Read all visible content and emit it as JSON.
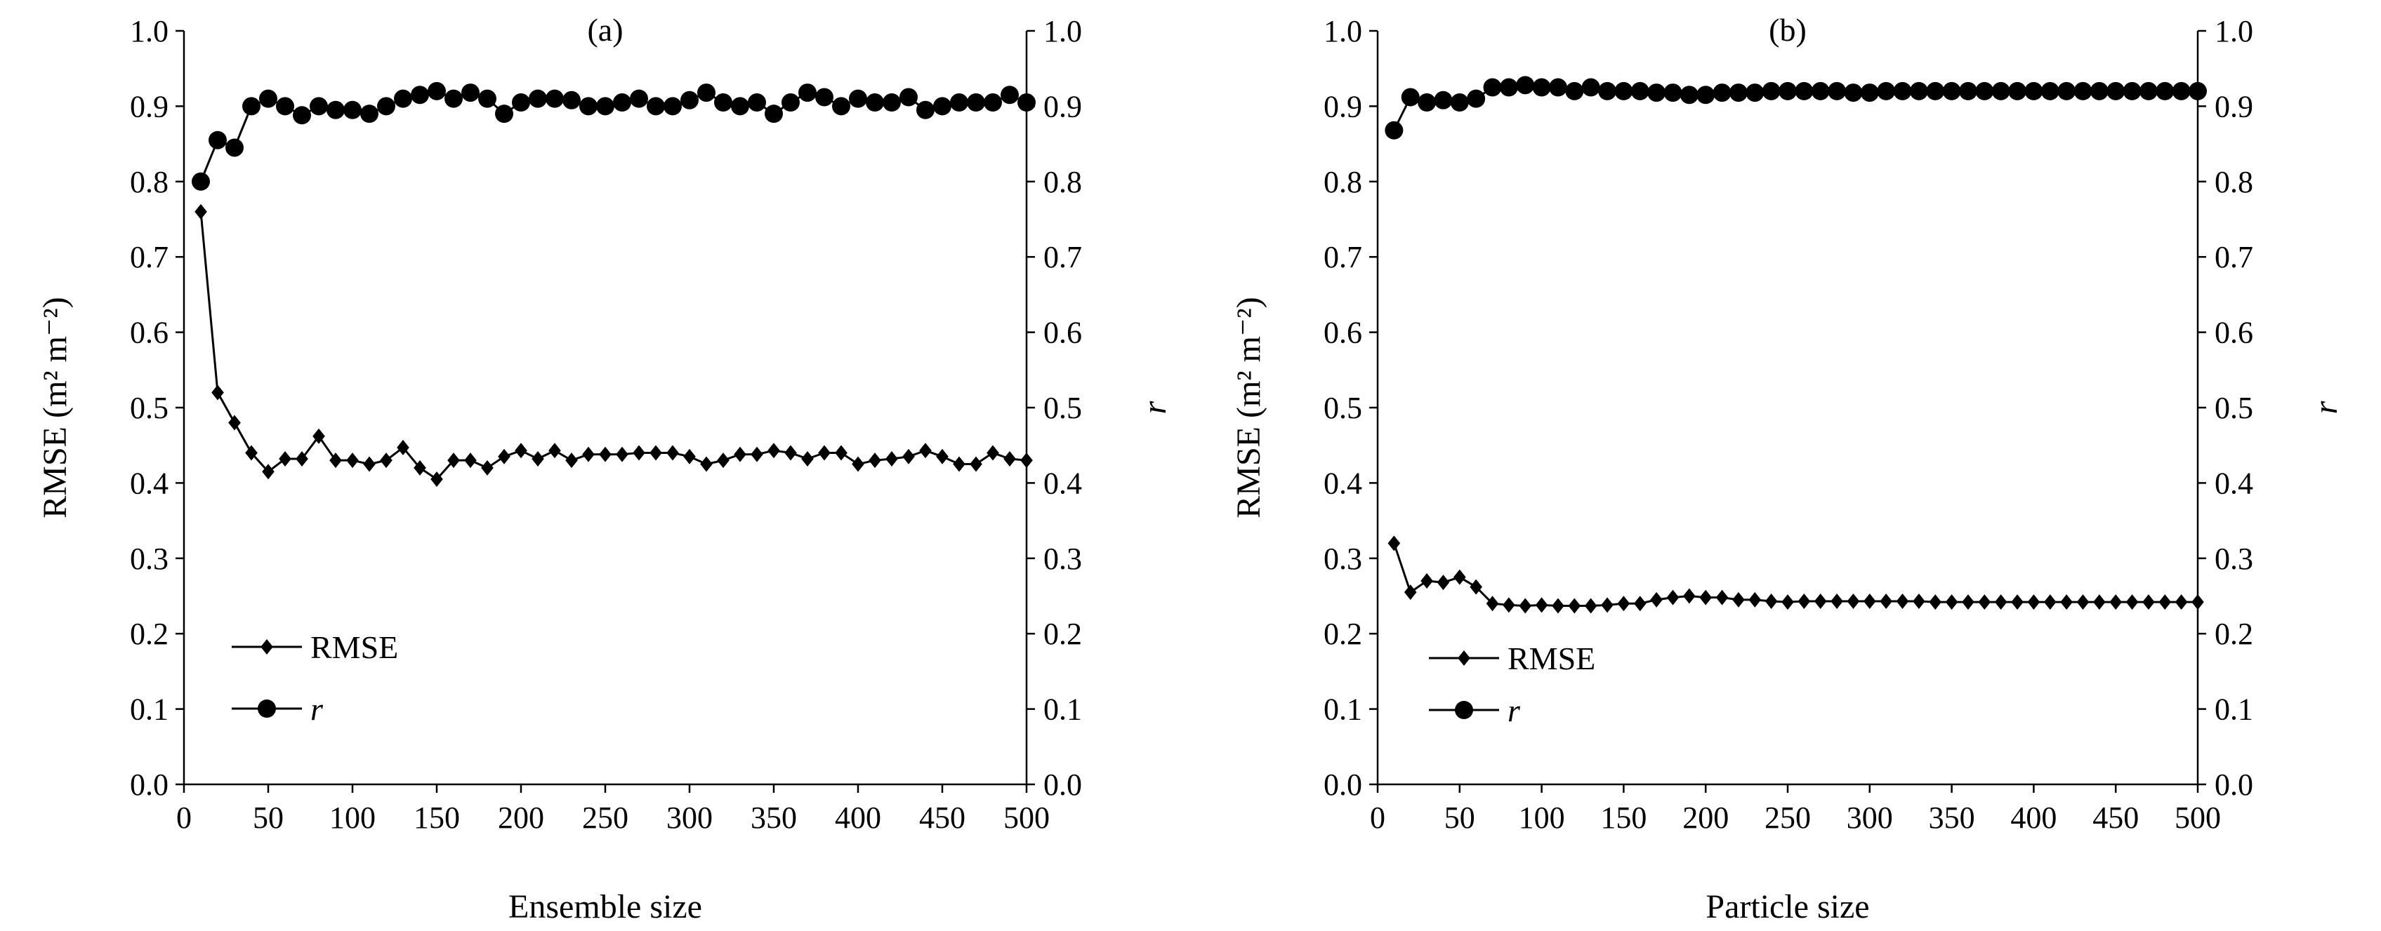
{
  "chart_data": [
    {
      "type": "line",
      "title": "(a)",
      "xlabel": "Ensemble size",
      "ylabel_left": "RMSE (m² m⁻²)",
      "ylabel_right": "r",
      "xlim": [
        0,
        500
      ],
      "ylim": [
        0,
        1
      ],
      "ylim_right": [
        0,
        1
      ],
      "x_ticks": [
        "0",
        "50",
        "100",
        "150",
        "200",
        "250",
        "300",
        "350",
        "400",
        "450",
        "500"
      ],
      "y_ticks": [
        "0.0",
        "0.1",
        "0.2",
        "0.3",
        "0.4",
        "0.5",
        "0.6",
        "0.7",
        "0.8",
        "0.9",
        "1.0"
      ],
      "legend": [
        "RMSE",
        "r"
      ],
      "legend_position": "bottom-left",
      "grid": false,
      "x": [
        10,
        20,
        30,
        40,
        50,
        60,
        70,
        80,
        90,
        100,
        110,
        120,
        130,
        140,
        150,
        160,
        170,
        180,
        190,
        200,
        210,
        220,
        230,
        240,
        250,
        260,
        270,
        280,
        290,
        300,
        310,
        320,
        330,
        340,
        350,
        360,
        370,
        380,
        390,
        400,
        410,
        420,
        430,
        440,
        450,
        460,
        470,
        480,
        490,
        500
      ],
      "series": [
        {
          "name": "RMSE",
          "marker": "diamond",
          "axis": "left",
          "values": [
            0.76,
            0.52,
            0.48,
            0.44,
            0.415,
            0.432,
            0.432,
            0.462,
            0.43,
            0.43,
            0.425,
            0.43,
            0.447,
            0.42,
            0.405,
            0.43,
            0.43,
            0.42,
            0.435,
            0.443,
            0.432,
            0.443,
            0.43,
            0.438,
            0.438,
            0.438,
            0.44,
            0.44,
            0.44,
            0.435,
            0.425,
            0.43,
            0.438,
            0.438,
            0.443,
            0.44,
            0.432,
            0.44,
            0.44,
            0.425,
            0.43,
            0.432,
            0.435,
            0.443,
            0.435,
            0.425,
            0.425,
            0.44,
            0.432,
            0.43
          ]
        },
        {
          "name": "r",
          "marker": "circle",
          "axis": "right",
          "values": [
            0.8,
            0.855,
            0.845,
            0.9,
            0.91,
            0.9,
            0.888,
            0.9,
            0.895,
            0.895,
            0.89,
            0.9,
            0.91,
            0.915,
            0.92,
            0.91,
            0.918,
            0.91,
            0.89,
            0.905,
            0.91,
            0.91,
            0.908,
            0.9,
            0.9,
            0.905,
            0.91,
            0.9,
            0.9,
            0.908,
            0.918,
            0.905,
            0.9,
            0.905,
            0.89,
            0.905,
            0.918,
            0.912,
            0.9,
            0.91,
            0.905,
            0.905,
            0.912,
            0.895,
            0.9,
            0.905,
            0.905,
            0.905,
            0.915,
            0.905
          ]
        }
      ]
    },
    {
      "type": "line",
      "title": "(b)",
      "xlabel": "Particle size",
      "ylabel_left": "RMSE (m² m⁻²)",
      "ylabel_right": "r",
      "xlim": [
        0,
        500
      ],
      "ylim": [
        0,
        1
      ],
      "ylim_right": [
        0,
        1
      ],
      "x_ticks": [
        "0",
        "50",
        "100",
        "150",
        "200",
        "250",
        "300",
        "350",
        "400",
        "450",
        "500"
      ],
      "y_ticks": [
        "0.0",
        "0.1",
        "0.2",
        "0.3",
        "0.4",
        "0.5",
        "0.6",
        "0.7",
        "0.8",
        "0.9",
        "1.0"
      ],
      "legend": [
        "RMSE",
        "r"
      ],
      "legend_position": "bottom-left",
      "grid": false,
      "x": [
        10,
        20,
        30,
        40,
        50,
        60,
        70,
        80,
        90,
        100,
        110,
        120,
        130,
        140,
        150,
        160,
        170,
        180,
        190,
        200,
        210,
        220,
        230,
        240,
        250,
        260,
        270,
        280,
        290,
        300,
        310,
        320,
        330,
        340,
        350,
        360,
        370,
        380,
        390,
        400,
        410,
        420,
        430,
        440,
        450,
        460,
        470,
        480,
        490,
        500
      ],
      "series": [
        {
          "name": "RMSE",
          "marker": "diamond",
          "axis": "left",
          "values": [
            0.32,
            0.255,
            0.27,
            0.268,
            0.275,
            0.262,
            0.24,
            0.238,
            0.237,
            0.238,
            0.237,
            0.237,
            0.237,
            0.238,
            0.24,
            0.24,
            0.245,
            0.248,
            0.25,
            0.248,
            0.248,
            0.245,
            0.245,
            0.243,
            0.242,
            0.243,
            0.243,
            0.243,
            0.243,
            0.243,
            0.243,
            0.243,
            0.243,
            0.242,
            0.242,
            0.242,
            0.242,
            0.242,
            0.242,
            0.242,
            0.242,
            0.242,
            0.242,
            0.242,
            0.242,
            0.242,
            0.242,
            0.242,
            0.242,
            0.242
          ]
        },
        {
          "name": "r",
          "marker": "circle",
          "axis": "right",
          "values": [
            0.868,
            0.912,
            0.905,
            0.908,
            0.905,
            0.91,
            0.925,
            0.925,
            0.928,
            0.925,
            0.925,
            0.92,
            0.925,
            0.92,
            0.92,
            0.92,
            0.918,
            0.918,
            0.915,
            0.915,
            0.918,
            0.918,
            0.918,
            0.92,
            0.92,
            0.92,
            0.92,
            0.92,
            0.918,
            0.918,
            0.92,
            0.92,
            0.92,
            0.92,
            0.92,
            0.92,
            0.92,
            0.92,
            0.92,
            0.92,
            0.92,
            0.92,
            0.92,
            0.92,
            0.92,
            0.92,
            0.92,
            0.92,
            0.92,
            0.92
          ]
        }
      ]
    }
  ]
}
